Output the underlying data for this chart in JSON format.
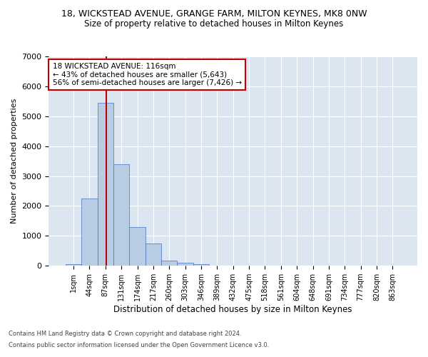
{
  "title": "18, WICKSTEAD AVENUE, GRANGE FARM, MILTON KEYNES, MK8 0NW",
  "subtitle": "Size of property relative to detached houses in Milton Keynes",
  "xlabel": "Distribution of detached houses by size in Milton Keynes",
  "ylabel": "Number of detached properties",
  "footer_line1": "Contains HM Land Registry data © Crown copyright and database right 2024.",
  "footer_line2": "Contains public sector information licensed under the Open Government Licence v3.0.",
  "bar_labels": [
    "1sqm",
    "44sqm",
    "87sqm",
    "131sqm",
    "174sqm",
    "217sqm",
    "260sqm",
    "303sqm",
    "346sqm",
    "389sqm",
    "432sqm",
    "475sqm",
    "518sqm",
    "561sqm",
    "604sqm",
    "648sqm",
    "691sqm",
    "734sqm",
    "777sqm",
    "820sqm",
    "863sqm"
  ],
  "bar_values": [
    50,
    2250,
    5450,
    3400,
    1300,
    750,
    175,
    100,
    55,
    10,
    0,
    0,
    0,
    0,
    0,
    0,
    0,
    0,
    0,
    0,
    0
  ],
  "bar_color": "#b8cce4",
  "bar_edge_color": "#4472c4",
  "background_color": "#dce6f1",
  "grid_color": "#ffffff",
  "vline_color": "#c00000",
  "vline_pos": 2.07,
  "annotation_text": "18 WICKSTEAD AVENUE: 116sqm\n← 43% of detached houses are smaller (5,643)\n56% of semi-detached houses are larger (7,426) →",
  "annotation_box_color": "#ffffff",
  "annotation_box_edge": "#c00000",
  "ylim": [
    0,
    7000
  ],
  "yticks": [
    0,
    1000,
    2000,
    3000,
    4000,
    5000,
    6000,
    7000
  ]
}
